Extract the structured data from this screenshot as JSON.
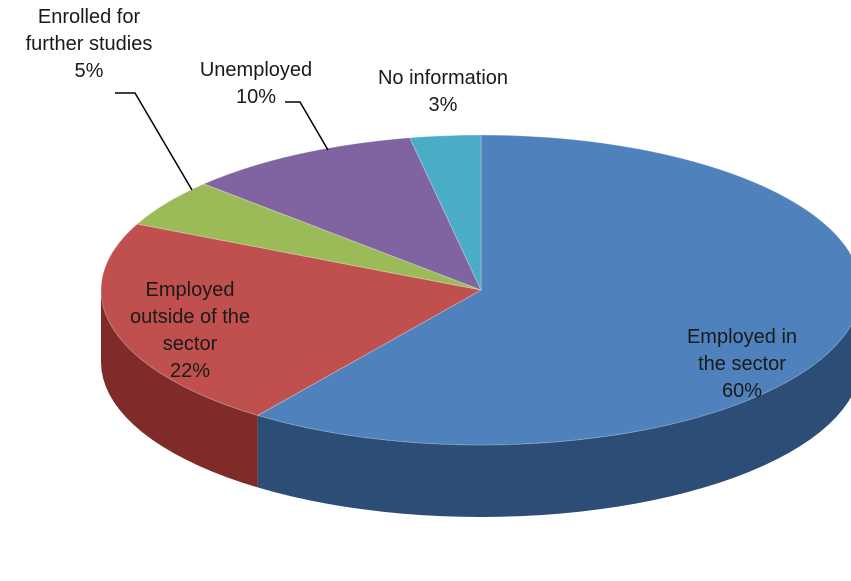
{
  "chart_data": {
    "type": "pie",
    "title": "",
    "slices": [
      {
        "label": [
          "Employed in",
          "the sector"
        ],
        "value": 60,
        "percent_label": "60%",
        "color": "#4F81BD",
        "side_color": "#2C4D75"
      },
      {
        "label": [
          "Employed",
          "outside of the",
          "sector"
        ],
        "value": 22,
        "percent_label": "22%",
        "color": "#C0504D",
        "side_color": "#7F2B29"
      },
      {
        "label": [
          "Enrolled for",
          "further studies"
        ],
        "value": 5,
        "percent_label": "5%",
        "color": "#9BBB59",
        "side_color": "#5F7A30"
      },
      {
        "label": [
          "Unemployed"
        ],
        "value": 10,
        "percent_label": "10%",
        "color": "#8064A2",
        "side_color": "#4D3B63"
      },
      {
        "label": [
          "No information"
        ],
        "value": 3,
        "percent_label": "3%",
        "color": "#4BACC6",
        "side_color": "#2B6E80"
      }
    ],
    "style": "3d-pie",
    "label_position": "on-slice-or-outside-with-leader-lines"
  }
}
